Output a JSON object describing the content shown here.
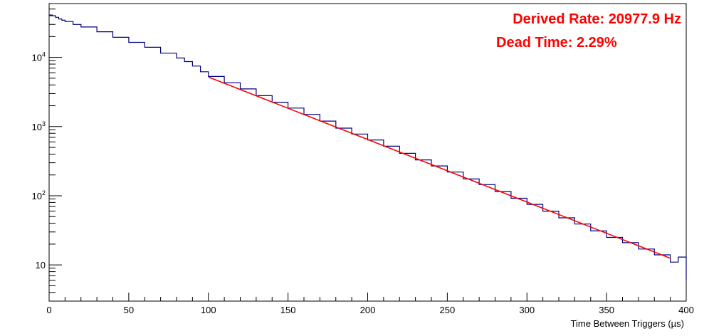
{
  "chart_data": {
    "type": "line",
    "xlabel": "Time Between Triggers (µs)",
    "ylabel": "",
    "xlim": [
      0,
      400
    ],
    "ylim": [
      3,
      60000
    ],
    "y_scale": "log",
    "x_ticks": [
      0,
      50,
      100,
      150,
      200,
      250,
      300,
      350,
      400
    ],
    "x_tick_labels": [
      "0",
      "50",
      "100",
      "150",
      "200",
      "250",
      "300",
      "350",
      "400"
    ],
    "y_ticks": [
      10,
      100,
      1000,
      10000
    ],
    "y_tick_labels": [
      {
        "base": "",
        "exp": "",
        "plain": "10"
      },
      {
        "base": "10",
        "exp": "2",
        "plain": ""
      },
      {
        "base": "10",
        "exp": "3",
        "plain": ""
      },
      {
        "base": "10",
        "exp": "4",
        "plain": ""
      }
    ],
    "annotations": [
      "Derived Rate: 20977.9 Hz",
      "Dead Time: 2.29%"
    ],
    "series": [
      {
        "kind": "histogram",
        "color": "#000080",
        "x": [
          0,
          2,
          4,
          6,
          8,
          10,
          15,
          20,
          30,
          40,
          50,
          60,
          70,
          80,
          85,
          90,
          95,
          100,
          110,
          120,
          130,
          140,
          150,
          160,
          170,
          180,
          190,
          200,
          210,
          220,
          230,
          240,
          250,
          260,
          270,
          280,
          290,
          300,
          310,
          320,
          330,
          340,
          350,
          360,
          370,
          380,
          390,
          395,
          400
        ],
        "y": [
          41000,
          40000,
          38000,
          36000,
          34500,
          33000,
          30000,
          27500,
          23500,
          19500,
          16500,
          14000,
          11500,
          9800,
          8700,
          7500,
          6200,
          5300,
          4300,
          3500,
          2800,
          2250,
          1850,
          1500,
          1200,
          950,
          780,
          640,
          520,
          410,
          330,
          270,
          220,
          175,
          145,
          115,
          92,
          75,
          60,
          48,
          39,
          31,
          25,
          21,
          17,
          14,
          11,
          13,
          6
        ]
      },
      {
        "kind": "fit",
        "color": "#ff0000",
        "x": [
          100,
          390
        ],
        "y": [
          5200,
          12.5
        ]
      }
    ]
  }
}
